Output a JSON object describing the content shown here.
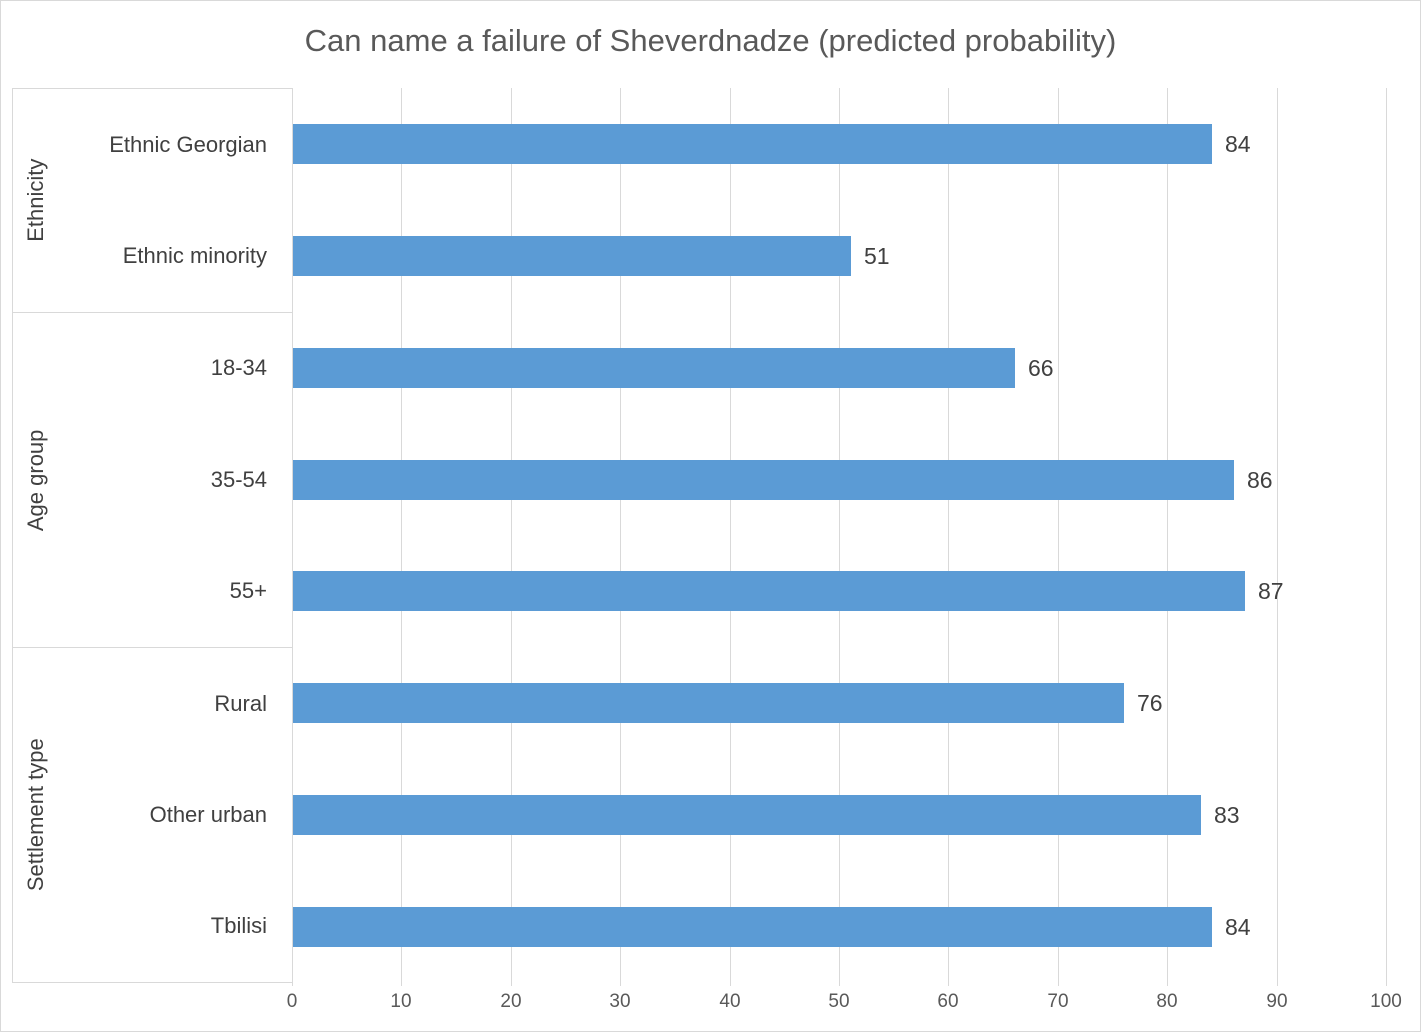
{
  "chart_data": {
    "type": "bar",
    "orientation": "horizontal",
    "title": "Can name a failure of Sheverdnadze (predicted probability)",
    "groups": [
      {
        "label": "Ethnicity",
        "items": [
          {
            "label": "Ethnic Georgian",
            "value": 84
          },
          {
            "label": "Ethnic minority",
            "value": 51
          }
        ]
      },
      {
        "label": "Age group",
        "items": [
          {
            "label": "18-34",
            "value": 66
          },
          {
            "label": "35-54",
            "value": 86
          },
          {
            "label": "55+",
            "value": 87
          }
        ]
      },
      {
        "label": "Settlement type",
        "items": [
          {
            "label": "Rural",
            "value": 76
          },
          {
            "label": "Other urban",
            "value": 83
          },
          {
            "label": "Tbilisi",
            "value": 84
          }
        ]
      }
    ],
    "xlim": [
      0,
      100
    ],
    "x_ticks": [
      0,
      10,
      20,
      30,
      40,
      50,
      60,
      70,
      80,
      90,
      100
    ],
    "grid": true,
    "legend": "none",
    "data_labels": true,
    "colors": {
      "bar": "#5b9bd5",
      "gridline": "#d9d9d9",
      "box_border": "#d9d9d9",
      "title_text": "#595959",
      "label_text": "#404040",
      "tick_text": "#595959"
    }
  }
}
